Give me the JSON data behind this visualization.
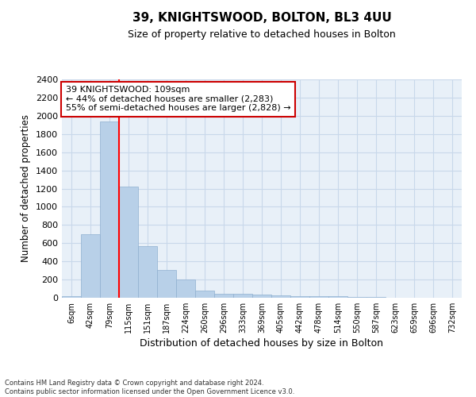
{
  "title1": "39, KNIGHTSWOOD, BOLTON, BL3 4UU",
  "title2": "Size of property relative to detached houses in Bolton",
  "xlabel": "Distribution of detached houses by size in Bolton",
  "ylabel": "Number of detached properties",
  "bin_labels": [
    "6sqm",
    "42sqm",
    "79sqm",
    "115sqm",
    "151sqm",
    "187sqm",
    "224sqm",
    "260sqm",
    "296sqm",
    "333sqm",
    "369sqm",
    "405sqm",
    "442sqm",
    "478sqm",
    "514sqm",
    "550sqm",
    "587sqm",
    "623sqm",
    "659sqm",
    "696sqm",
    "732sqm"
  ],
  "bar_heights": [
    20,
    700,
    1940,
    1220,
    570,
    305,
    200,
    80,
    45,
    40,
    35,
    30,
    20,
    15,
    20,
    5,
    5,
    3,
    3,
    2,
    2
  ],
  "bar_color": "#b8d0e8",
  "bar_edgecolor": "#8fb0d0",
  "bar_linewidth": 0.5,
  "red_line_x": 2.5,
  "annotation_text": "39 KNIGHTSWOOD: 109sqm\n← 44% of detached houses are smaller (2,283)\n55% of semi-detached houses are larger (2,828) →",
  "annotation_box_color": "#ffffff",
  "annotation_box_edgecolor": "#cc0000",
  "ylim": [
    0,
    2400
  ],
  "yticks": [
    0,
    200,
    400,
    600,
    800,
    1000,
    1200,
    1400,
    1600,
    1800,
    2000,
    2200,
    2400
  ],
  "grid_color": "#c8d8ea",
  "bg_color": "#e8f0f8",
  "footnote": "Contains HM Land Registry data © Crown copyright and database right 2024.\nContains public sector information licensed under the Open Government Licence v3.0."
}
